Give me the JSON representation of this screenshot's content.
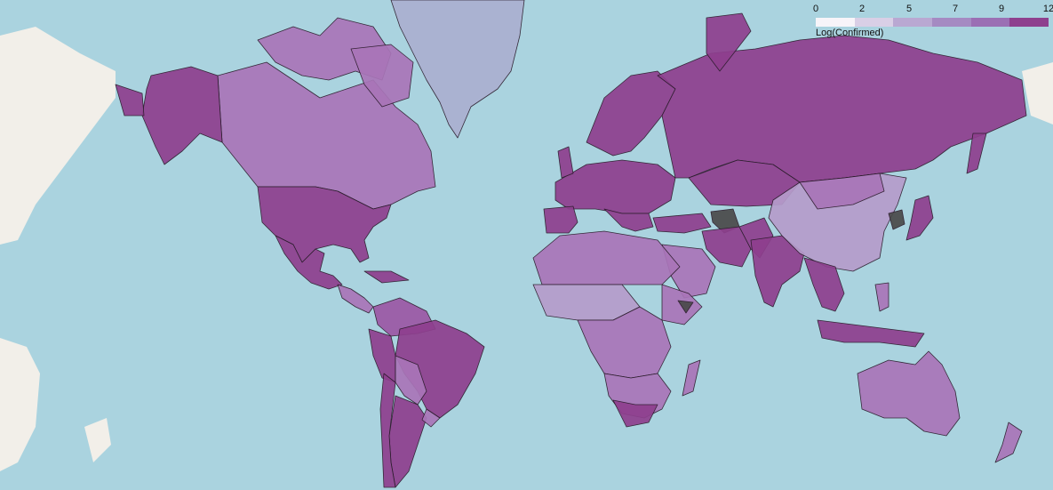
{
  "legend": {
    "title": "Log(Confirmed)",
    "ticks": [
      "0",
      "2",
      "5",
      "7",
      "9",
      "12"
    ],
    "colors": [
      "#f7f4f9",
      "#d9cfe6",
      "#b9a8d2",
      "#a58ac2",
      "#9b6fb4",
      "#8e3f8e"
    ]
  },
  "colors": {
    "ocean": "#aad3df",
    "land_no_data": "#f2efe9",
    "very_high": "#8e3f8e",
    "high": "#9b58a5",
    "medium": "#a975b8",
    "low": "#b59ccb",
    "very_low": "#aab0d0",
    "missing": "#4a4a4a"
  },
  "regions": [
    {
      "name": "Greenland",
      "level": "very_low"
    },
    {
      "name": "Canada",
      "level": "medium"
    },
    {
      "name": "United States",
      "level": "very_high"
    },
    {
      "name": "Alaska",
      "level": "very_high"
    },
    {
      "name": "Mexico",
      "level": "very_high"
    },
    {
      "name": "Brazil",
      "level": "very_high"
    },
    {
      "name": "Russia",
      "level": "very_high"
    },
    {
      "name": "China",
      "level": "low"
    },
    {
      "name": "India",
      "level": "very_high"
    },
    {
      "name": "Australia",
      "level": "medium"
    },
    {
      "name": "Africa",
      "level": "medium"
    },
    {
      "name": "Europe",
      "level": "very_high"
    },
    {
      "name": "Middle East",
      "level": "very_high"
    },
    {
      "name": "Turkmenistan",
      "level": "missing"
    },
    {
      "name": "North Korea",
      "level": "missing"
    }
  ]
}
